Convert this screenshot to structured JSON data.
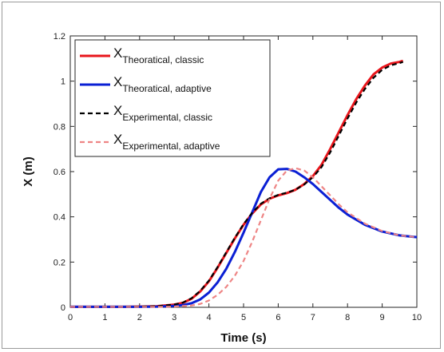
{
  "chart_data": {
    "type": "line",
    "xlabel": "Time (s)",
    "ylabel": "X (m)",
    "xlim": [
      0,
      10
    ],
    "ylim": [
      0,
      1.2
    ],
    "xticks": [
      "0",
      "1",
      "2",
      "3",
      "4",
      "5",
      "6",
      "7",
      "8",
      "9",
      "10"
    ],
    "yticks": [
      "0",
      "0.2",
      "0.4",
      "0.6",
      "0.8",
      "1",
      "1.2"
    ],
    "grid": false,
    "legend_position": "top-left",
    "series": [
      {
        "name_main": "X",
        "name_sub": "Theoratical, classic",
        "color": "#e8151b",
        "dash": "solid",
        "x": [
          0,
          0.5,
          1,
          1.5,
          2,
          2.5,
          3,
          3.25,
          3.5,
          3.75,
          4,
          4.25,
          4.5,
          4.75,
          5,
          5.25,
          5.5,
          5.75,
          6,
          6.25,
          6.5,
          6.75,
          7,
          7.25,
          7.5,
          7.75,
          8,
          8.25,
          8.5,
          8.75,
          9,
          9.25,
          9.5,
          9.6
        ],
        "values": [
          0.002,
          0.002,
          0.002,
          0.002,
          0.003,
          0.005,
          0.012,
          0.02,
          0.038,
          0.07,
          0.115,
          0.175,
          0.24,
          0.305,
          0.365,
          0.415,
          0.455,
          0.48,
          0.495,
          0.505,
          0.52,
          0.545,
          0.58,
          0.63,
          0.7,
          0.775,
          0.85,
          0.92,
          0.98,
          1.03,
          1.06,
          1.078,
          1.085,
          1.09
        ]
      },
      {
        "name_main": "X",
        "name_sub": "Theoratical, adaptive",
        "color": "#0a1fd4",
        "dash": "solid",
        "x": [
          0,
          0.5,
          1,
          1.5,
          2,
          2.5,
          3,
          3.25,
          3.5,
          3.75,
          4,
          4.25,
          4.5,
          4.75,
          5,
          5.25,
          5.5,
          5.75,
          6,
          6.25,
          6.5,
          6.75,
          7,
          7.25,
          7.5,
          7.75,
          8,
          8.5,
          9,
          9.5,
          10
        ],
        "values": [
          0.002,
          0.002,
          0.002,
          0.002,
          0.002,
          0.003,
          0.006,
          0.01,
          0.018,
          0.035,
          0.065,
          0.11,
          0.17,
          0.245,
          0.33,
          0.42,
          0.51,
          0.575,
          0.61,
          0.612,
          0.6,
          0.575,
          0.545,
          0.51,
          0.475,
          0.44,
          0.41,
          0.365,
          0.335,
          0.318,
          0.31
        ]
      },
      {
        "name_main": "X",
        "name_sub": "Experimental, classic",
        "color": "#000000",
        "dash": "dashed",
        "x": [
          0,
          0.5,
          1,
          1.5,
          2,
          2.5,
          3,
          3.25,
          3.5,
          3.75,
          4,
          4.25,
          4.5,
          4.75,
          5,
          5.25,
          5.5,
          5.75,
          6,
          6.25,
          6.5,
          6.75,
          7,
          7.25,
          7.5,
          7.75,
          8,
          8.25,
          8.5,
          8.75,
          9,
          9.25,
          9.5,
          9.6
        ],
        "values": [
          0.002,
          0.002,
          0.002,
          0.002,
          0.003,
          0.005,
          0.012,
          0.021,
          0.04,
          0.073,
          0.118,
          0.178,
          0.243,
          0.308,
          0.368,
          0.418,
          0.458,
          0.482,
          0.497,
          0.507,
          0.52,
          0.543,
          0.575,
          0.62,
          0.685,
          0.76,
          0.835,
          0.905,
          0.965,
          1.015,
          1.05,
          1.07,
          1.08,
          1.085
        ]
      },
      {
        "name_main": "X",
        "name_sub": "Experimental, adaptive",
        "color": "#ee8585",
        "dash": "dashed",
        "x": [
          0,
          0.5,
          1,
          1.5,
          2,
          2.5,
          3,
          3.5,
          3.75,
          4,
          4.25,
          4.5,
          4.75,
          5,
          5.25,
          5.5,
          5.75,
          6,
          6.25,
          6.5,
          6.75,
          7,
          7.25,
          7.5,
          7.75,
          8,
          8.5,
          9,
          9.5,
          10
        ],
        "values": [
          0.002,
          0.002,
          0.002,
          0.002,
          0.002,
          0.002,
          0.003,
          0.008,
          0.015,
          0.03,
          0.055,
          0.09,
          0.14,
          0.205,
          0.29,
          0.385,
          0.48,
          0.56,
          0.605,
          0.615,
          0.605,
          0.575,
          0.535,
          0.495,
          0.455,
          0.42,
          0.37,
          0.337,
          0.318,
          0.31
        ]
      }
    ]
  }
}
